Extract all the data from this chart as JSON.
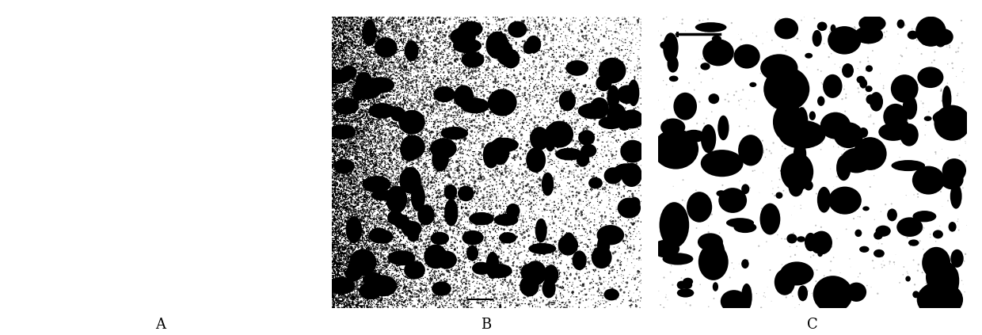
{
  "panels": [
    "A",
    "B",
    "C"
  ],
  "label_fontsize": 13,
  "background_color": "#ffffff",
  "fig_width": 12.4,
  "fig_height": 4.23,
  "panel_A": {
    "bg": "#000000",
    "n_noise_fine": 8000,
    "n_noise_medium": 3000,
    "n_clusters": 200
  },
  "panel_B": {
    "bg": "#ffffff",
    "n_noise": 12000,
    "n_blobs": 120,
    "blob_size_min": 0.018,
    "blob_size_max": 0.048
  },
  "panel_C": {
    "bg": "#ffffff",
    "n_blobs": 150,
    "blob_size_min": 0.015,
    "blob_size_max": 0.055
  }
}
